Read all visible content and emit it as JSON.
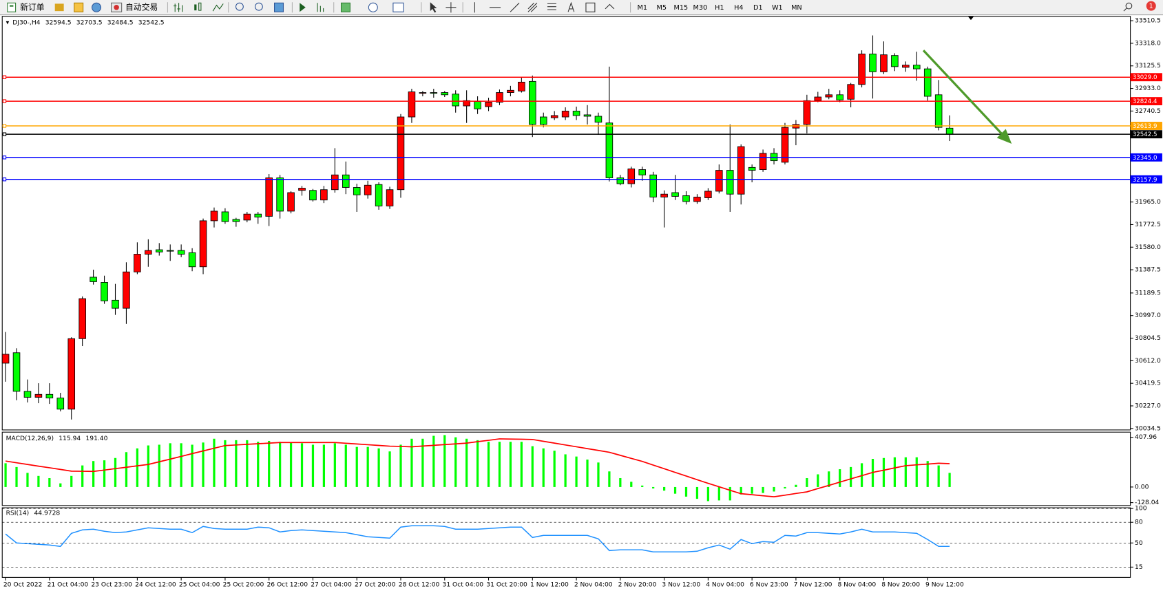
{
  "toolbar": {
    "new_order": "新订单",
    "auto_trading": "自动交易",
    "timeframes": [
      "M1",
      "M5",
      "M15",
      "M30",
      "H1",
      "H4",
      "D1",
      "W1",
      "MN"
    ],
    "notifications": "1"
  },
  "chart_data": [
    {
      "type": "candlestick",
      "symbol": "DJ30-,H4",
      "categories": [
        "20 Oct 2022",
        null,
        null,
        null,
        "21 Oct 04:00",
        null,
        null,
        null,
        "23 Oct 23:00",
        null,
        null,
        null,
        "24 Oct 12:00",
        null,
        null,
        null,
        "25 Oct 04:00",
        null,
        null,
        null,
        "25 Oct 20:00",
        null,
        null,
        null,
        "26 Oct 12:00",
        null,
        null,
        null,
        "27 Oct 04:00",
        null,
        null,
        null,
        "27 Oct 20:00",
        null,
        null,
        null,
        "28 Oct 12:00",
        null,
        null,
        null,
        "31 Oct 04:00",
        null,
        null,
        null,
        "31 Oct 20:00",
        null,
        null,
        null,
        "1 Nov 12:00",
        null,
        null,
        null,
        "2 Nov 04:00",
        null,
        null,
        null,
        "2 Nov 20:00",
        null,
        null,
        null,
        "3 Nov 12:00",
        null,
        null,
        null,
        "4 Nov 04:00",
        null,
        null,
        null,
        "6 Nov 23:00",
        null,
        null,
        null,
        "7 Nov 12:00",
        null,
        null,
        null,
        "8 Nov 04:00",
        null,
        null,
        null,
        "8 Nov 20:00",
        null,
        null,
        null,
        "9 Nov 12:00",
        null,
        null
      ],
      "open": [
        30591,
        30680,
        30351,
        30300,
        30325,
        30294,
        30199,
        30800,
        31324,
        31280,
        31128,
        31059,
        31369,
        31520,
        31558,
        31552,
        31552,
        31533,
        31413,
        31805,
        31881,
        31817,
        31811,
        31862,
        31843,
        32171,
        31887,
        32064,
        32064,
        31982,
        32070,
        32196,
        32089,
        32026,
        32114,
        31931,
        32070,
        32690,
        32892,
        32898,
        32898,
        32885,
        32784,
        32822,
        32778,
        32816,
        32898,
        32911,
        32993,
        32690,
        32683,
        32690,
        32740,
        32708,
        32696,
        32639,
        32171,
        32121,
        32241,
        32196,
        32007,
        32045,
        32019,
        31969,
        32001,
        32057,
        32235,
        32032,
        32260,
        32241,
        32380,
        32304,
        32595,
        32626,
        32829,
        32860,
        32879,
        32841,
        32967,
        33227,
        33075,
        33214,
        33113,
        33132,
        33100,
        32879,
        32594.5
      ],
      "high": [
        30857,
        30718,
        30452,
        30420,
        30420,
        30338,
        30812,
        31160,
        31388,
        31337,
        31267,
        31451,
        31621,
        31647,
        31615,
        31603,
        31603,
        31571,
        31824,
        31918,
        31912,
        31830,
        31881,
        31881,
        32203,
        32196,
        32057,
        32102,
        32076,
        32102,
        32424,
        32310,
        32121,
        32146,
        32133,
        32095,
        32715,
        32930,
        32911,
        32930,
        32911,
        32917,
        32917,
        32866,
        32854,
        32924,
        32955,
        33025,
        33043,
        32727,
        32740,
        32772,
        32778,
        32791,
        32727,
        33119,
        32196,
        32266,
        32266,
        32222,
        32064,
        32196,
        32057,
        32032,
        32083,
        32285,
        32626,
        32456,
        32285,
        32412,
        32424,
        32639,
        32664,
        32879,
        32904,
        32930,
        32917,
        32980,
        33258,
        33385,
        33334,
        33233,
        33163,
        33246,
        33119,
        33005,
        32703.5
      ],
      "low": [
        30433,
        30275,
        30256,
        30250,
        30244,
        30180,
        30111,
        30737,
        31261,
        31097,
        31003,
        30926,
        31350,
        31413,
        31508,
        31463,
        31495,
        31375,
        31350,
        31748,
        31779,
        31754,
        31792,
        31779,
        31760,
        31824,
        31868,
        32019,
        31969,
        31956,
        32045,
        32032,
        31881,
        31994,
        31899,
        31906,
        32001,
        32639,
        32866,
        32854,
        32860,
        32727,
        32639,
        32715,
        32740,
        32791,
        32866,
        32898,
        32519,
        32601,
        32664,
        32664,
        32664,
        32626,
        32538,
        32140,
        32108,
        32089,
        32146,
        31963,
        31748,
        31982,
        31944,
        31950,
        31982,
        32038,
        31881,
        31944,
        32133,
        32222,
        32285,
        32285,
        32449,
        32550,
        32816,
        32841,
        32816,
        32772,
        32942,
        32847,
        33056,
        33081,
        33075,
        32999,
        32829,
        32576,
        32484.5
      ],
      "close": [
        30667,
        30351,
        30300,
        30325,
        30294,
        30199,
        30800,
        31141,
        31286,
        31122,
        31059,
        31369,
        31520,
        31552,
        31539,
        31546,
        31520,
        31413,
        31805,
        31887,
        31798,
        31798,
        31862,
        31836,
        32171,
        31887,
        32045,
        32083,
        31982,
        32070,
        32196,
        32089,
        32026,
        32108,
        31931,
        32070,
        32690,
        32904,
        32898,
        32892,
        32879,
        32784,
        32829,
        32759,
        32816,
        32898,
        32917,
        32987,
        32626,
        32626,
        32702,
        32740,
        32702,
        32696,
        32645,
        32171,
        32121,
        32247,
        32196,
        32007,
        32032,
        32013,
        31969,
        32007,
        32057,
        32235,
        32032,
        32437,
        32235,
        32380,
        32317,
        32601,
        32626,
        32829,
        32860,
        32879,
        32835,
        32967,
        33227,
        33075,
        33220,
        33119,
        33132,
        33100,
        32866,
        32601,
        32542.5
      ],
      "up_color": "#ff0000",
      "down_color": "#00ff00",
      "ylim": [
        30022,
        33548
      ],
      "yticks": [
        33510.5,
        {
          "value": 33318,
          "label": "33318.0"
        },
        33125.5,
        {
          "value": 32933,
          "label": "32933.0"
        },
        32740.5,
        {
          "value": 31965,
          "label": "31965.0"
        },
        31772.5,
        {
          "value": 31580,
          "label": "31580.0"
        },
        31387.5,
        31189.5,
        {
          "value": 30997,
          "label": "30997.0"
        },
        30804.5,
        {
          "value": 30612,
          "label": "30612.0"
        },
        30419.5,
        {
          "value": 30227,
          "label": "30227.0"
        },
        30034.5
      ],
      "levels": [
        {
          "value": 33029,
          "label": "33029.0",
          "color": "#ff0000"
        },
        {
          "value": 32824.4,
          "color": "#ff0000"
        },
        {
          "value": 32613.9,
          "color": "#ffa500"
        },
        {
          "value": 32542.5,
          "color": "#000000"
        },
        {
          "value": 32345,
          "label": "32345.0",
          "color": "#0000ff"
        },
        {
          "value": 32157.9,
          "color": "#0000ff"
        }
      ]
    },
    {
      "type": "macd",
      "title": "MACD(12,26,9)",
      "signal_label": "191.40",
      "histogram": [
        195,
        164,
        116,
        91,
        73,
        30,
        91,
        177,
        213,
        219,
        238,
        286,
        317,
        341,
        347,
        359,
        359,
        347,
        365,
        396,
        384,
        384,
        384,
        371,
        378,
        371,
        365,
        359,
        347,
        347,
        359,
        347,
        329,
        329,
        317,
        292,
        347,
        396,
        396,
        420,
        426,
        408,
        396,
        384,
        371,
        371,
        371,
        371,
        335,
        317,
        298,
        268,
        250,
        225,
        201,
        128,
        73,
        43,
        12,
        -12,
        -30,
        -55,
        -79,
        -97,
        -116,
        -110,
        -110,
        -61,
        -55,
        -49,
        -37,
        -12,
        18,
        73,
        104,
        128,
        146,
        164,
        195,
        231,
        238,
        244,
        244,
        244,
        213,
        177,
        115.94
      ],
      "signal": [
        213,
        199,
        185,
        171,
        158,
        144,
        130,
        129,
        128,
        139,
        151,
        162,
        174,
        185,
        207,
        229,
        251,
        274,
        296,
        318,
        340,
        345,
        350,
        355,
        360,
        365,
        365,
        365,
        365,
        365,
        365,
        359,
        353,
        347,
        341,
        335,
        333,
        330,
        336,
        342,
        348,
        354,
        360,
        372,
        383,
        395,
        393,
        392,
        390,
        375,
        360,
        345,
        330,
        315,
        300,
        285,
        260,
        235,
        210,
        180,
        150,
        120,
        90,
        60,
        30,
        2,
        -27,
        -55,
        -63,
        -72,
        -80,
        -67,
        -53,
        -40,
        -13,
        13,
        40,
        67,
        93,
        120,
        138,
        157,
        175,
        182,
        188,
        195,
        191.4
      ],
      "histogram_color": "#00ff00",
      "signal_color": "#ff0000",
      "ylim": [
        -152,
        444
      ],
      "yticks": [
        407.96,
        {
          "value": 0,
          "label": "0.00"
        },
        -128.04
      ]
    },
    {
      "type": "rsi",
      "title": "RSI(14)",
      "values": [
        63,
        50,
        49,
        48,
        47,
        45,
        64,
        69,
        70,
        67,
        65,
        66,
        69,
        72,
        71,
        70,
        70,
        65,
        74,
        71,
        70,
        70,
        70,
        73,
        72,
        66,
        68,
        69,
        68,
        67,
        66,
        65,
        62,
        59,
        58,
        57,
        73,
        75,
        75,
        75,
        74,
        70,
        70,
        70,
        71,
        72,
        73,
        73,
        58,
        61,
        61,
        61,
        61,
        61,
        56,
        39,
        40,
        40,
        40,
        37,
        37,
        37,
        37,
        38,
        43,
        47,
        41,
        55,
        49,
        52,
        51,
        61,
        60,
        65,
        65,
        64,
        63,
        66,
        70,
        66,
        66,
        66,
        65,
        64,
        55,
        45,
        44.9728
      ],
      "color": "#1e90ff",
      "ylim": [
        0,
        100
      ],
      "yticks": [
        100,
        80,
        50,
        15
      ],
      "grid": "dashed"
    }
  ]
}
